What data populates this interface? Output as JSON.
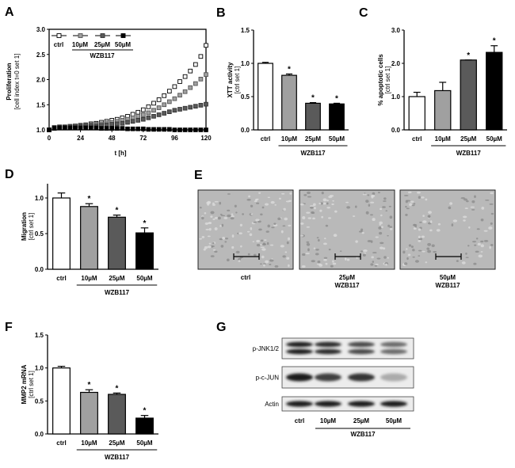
{
  "panels": {
    "A": "A",
    "B": "B",
    "C": "C",
    "D": "D",
    "E": "E",
    "F": "F",
    "G": "G"
  },
  "colors": {
    "ctrl": "#ffffff",
    "c10": "#a0a0a0",
    "c25": "#5a5a5a",
    "c50": "#000000"
  },
  "chart_data": [
    {
      "panel": "A",
      "type": "line",
      "ylabel": "Proliferation",
      "ylabel2": "[cell index t=0 set 1]",
      "xlabel": "t [h]",
      "xticks": [
        "0",
        "24",
        "48",
        "72",
        "96",
        "120"
      ],
      "yticks": [
        "1.0",
        "1.5",
        "2.0",
        "2.5",
        "3.0"
      ],
      "xlim": [
        0,
        120
      ],
      "ylim": [
        1.0,
        3.0
      ],
      "legend": [
        "ctrl",
        "10µM",
        "25µM",
        "50µM"
      ],
      "legend_group": "WZB117",
      "x": [
        0,
        4,
        8,
        12,
        16,
        20,
        24,
        28,
        32,
        36,
        40,
        44,
        48,
        52,
        56,
        60,
        64,
        68,
        72,
        76,
        80,
        84,
        88,
        92,
        96,
        100,
        104,
        108,
        112,
        116,
        120
      ],
      "series": [
        {
          "name": "ctrl",
          "values": [
            1.0,
            1.05,
            1.06,
            1.06,
            1.07,
            1.08,
            1.09,
            1.1,
            1.12,
            1.13,
            1.15,
            1.17,
            1.19,
            1.21,
            1.24,
            1.27,
            1.31,
            1.35,
            1.4,
            1.46,
            1.53,
            1.6,
            1.68,
            1.77,
            1.86,
            1.96,
            2.06,
            2.17,
            2.3,
            2.46,
            2.68
          ]
        },
        {
          "name": "10µM",
          "values": [
            1.0,
            1.05,
            1.06,
            1.06,
            1.07,
            1.08,
            1.08,
            1.09,
            1.1,
            1.11,
            1.12,
            1.14,
            1.15,
            1.17,
            1.19,
            1.21,
            1.24,
            1.27,
            1.3,
            1.34,
            1.39,
            1.44,
            1.5,
            1.56,
            1.62,
            1.69,
            1.76,
            1.84,
            1.92,
            2.01,
            2.1
          ]
        },
        {
          "name": "25µM",
          "values": [
            1.0,
            1.04,
            1.05,
            1.05,
            1.06,
            1.06,
            1.07,
            1.07,
            1.08,
            1.08,
            1.09,
            1.1,
            1.11,
            1.12,
            1.13,
            1.15,
            1.17,
            1.19,
            1.21,
            1.24,
            1.27,
            1.3,
            1.33,
            1.36,
            1.39,
            1.41,
            1.43,
            1.45,
            1.47,
            1.49,
            1.51
          ]
        },
        {
          "name": "50µM",
          "values": [
            1.0,
            1.03,
            1.04,
            1.04,
            1.04,
            1.04,
            1.04,
            1.04,
            1.04,
            1.04,
            1.03,
            1.03,
            1.03,
            1.03,
            1.03,
            1.02,
            1.02,
            1.02,
            1.02,
            1.01,
            1.01,
            1.01,
            1.01,
            1.01,
            1.0,
            1.0,
            1.0,
            1.0,
            1.0,
            1.0,
            1.0
          ]
        }
      ]
    },
    {
      "panel": "B",
      "type": "bar",
      "ylabel": "XTT activity",
      "ylabel2": "[ctrl set 1]",
      "yticks": [
        "0.0",
        "0.5",
        "1.0",
        "1.5"
      ],
      "ylim": [
        0,
        1.5
      ],
      "categories": [
        "ctrl",
        "10µM",
        "25µM",
        "50µM"
      ],
      "group_label": "WZB117",
      "values": [
        1.0,
        0.82,
        0.4,
        0.39
      ],
      "errors": [
        0.015,
        0.02,
        0.01,
        0.01
      ],
      "sig": [
        "",
        "*",
        "*",
        "*"
      ]
    },
    {
      "panel": "C",
      "type": "bar",
      "ylabel": "% apoptotic cells",
      "ylabel2": "[ctrl set 1]",
      "yticks": [
        "0.0",
        "1.0",
        "2.0",
        "3.0"
      ],
      "ylim": [
        0,
        3.0
      ],
      "categories": [
        "ctrl",
        "10µM",
        "25µM",
        "50µM"
      ],
      "group_label": "WZB117",
      "values": [
        1.0,
        1.18,
        2.1,
        2.33
      ],
      "errors": [
        0.13,
        0.25,
        0.0,
        0.2
      ],
      "sig": [
        "",
        "",
        "*",
        "*"
      ]
    },
    {
      "panel": "D",
      "type": "bar",
      "ylabel": "Migration",
      "ylabel2": "[ctrl set 1]",
      "yticks": [
        "0.0",
        "0.5",
        "1.0"
      ],
      "ylim": [
        0,
        1.2
      ],
      "categories": [
        "ctrl",
        "10µM",
        "25µM",
        "50µM"
      ],
      "group_label": "WZB117",
      "values": [
        1.0,
        0.88,
        0.73,
        0.51
      ],
      "errors": [
        0.07,
        0.04,
        0.03,
        0.07
      ],
      "sig": [
        "",
        "*",
        "*",
        "*"
      ]
    },
    {
      "panel": "F",
      "type": "bar",
      "ylabel": "MMP2 mRNA",
      "ylabel2": "[ctrl set 1]",
      "yticks": [
        "0.0",
        "0.5",
        "1.0",
        "1.5"
      ],
      "ylim": [
        0,
        1.5
      ],
      "categories": [
        "ctrl",
        "10µM",
        "25µM",
        "50µM"
      ],
      "group_label": "WZB117",
      "values": [
        1.0,
        0.63,
        0.6,
        0.24
      ],
      "errors": [
        0.025,
        0.04,
        0.02,
        0.04
      ],
      "sig": [
        "",
        "*",
        "*",
        "*"
      ]
    }
  ],
  "micrographs": {
    "images": [
      {
        "label": "ctrl",
        "sub": ""
      },
      {
        "label": "25µM",
        "sub": "WZB117"
      },
      {
        "label": "50µM",
        "sub": "WZB117"
      }
    ]
  },
  "blot": {
    "rows": [
      {
        "label": "p-JNK1/2",
        "intensity": [
          0.95,
          0.9,
          0.75,
          0.6
        ]
      },
      {
        "label": "p-c-JUN",
        "intensity": [
          0.95,
          0.8,
          0.85,
          0.3
        ]
      },
      {
        "label": "Actin",
        "intensity": [
          0.95,
          0.95,
          0.95,
          0.95
        ]
      }
    ],
    "lanes": [
      "ctrl",
      "10µM",
      "25µM",
      "50µM"
    ],
    "group_label": "WZB117"
  }
}
